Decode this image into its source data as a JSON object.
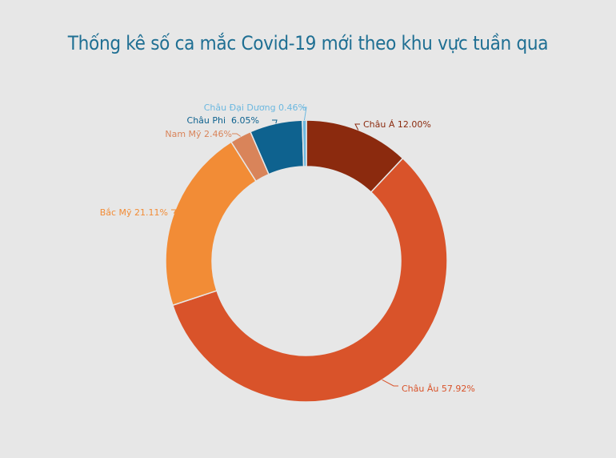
{
  "chart_data": {
    "type": "pie",
    "title": "Thống kê số ca mắc Covid-19 mới theo khu vực tuần qua",
    "series": [
      {
        "label": "Châu Á 12.00%",
        "value": 12.0,
        "color": "#8b2a0e"
      },
      {
        "label": "Châu Âu 57.92%",
        "value": 57.92,
        "color": "#d9532a"
      },
      {
        "label": "Bắc Mỹ 21.11%",
        "value": 21.11,
        "color": "#f28c36"
      },
      {
        "label": "Nam Mỹ 2.46%",
        "value": 2.46,
        "color": "#d9845a"
      },
      {
        "label": "Châu Phi  6.05%",
        "value": 6.05,
        "color": "#0e628f"
      },
      {
        "label": "Châu Đại Dương 0.46%",
        "value": 0.46,
        "color": "#6cb8e0"
      }
    ],
    "donut": true,
    "label_colors": [
      "#8b2a0e",
      "#d9532a",
      "#f28c36",
      "#d9845a",
      "#0e628f",
      "#6cb8e0"
    ]
  }
}
